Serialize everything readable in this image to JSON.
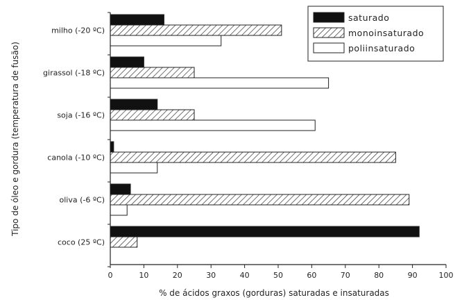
{
  "chart_data": {
    "type": "bar",
    "orientation": "horizontal",
    "categories": [
      "milho (-20 ºC)",
      "girassol (-18 ºC)",
      "soja (-16 ºC)",
      "canola (-10 ºC)",
      "oliva (-6 ºC)",
      "coco (25 ºC)"
    ],
    "series": [
      {
        "name": "saturado",
        "values": [
          16,
          10,
          14,
          1,
          6,
          92
        ],
        "fill": "#111111",
        "pattern": "solid"
      },
      {
        "name": "monoinsaturado",
        "values": [
          51,
          25,
          25,
          85,
          89,
          8
        ],
        "fill": "#ffffff",
        "pattern": "hatch"
      },
      {
        "name": "poliinsaturado",
        "values": [
          33,
          65,
          61,
          14,
          5,
          0
        ],
        "fill": "#ffffff",
        "pattern": "none"
      }
    ],
    "xlabel": "% de ácidos graxos (gorduras) saturadas e insaturadas",
    "ylabel": "Tipo de óleo e gordura (temperatura de fusão)",
    "xlim": [
      0,
      100
    ],
    "xticks": [
      0,
      10,
      20,
      30,
      40,
      50,
      60,
      70,
      80,
      90,
      100
    ],
    "grid": false,
    "legend": "top-right"
  }
}
